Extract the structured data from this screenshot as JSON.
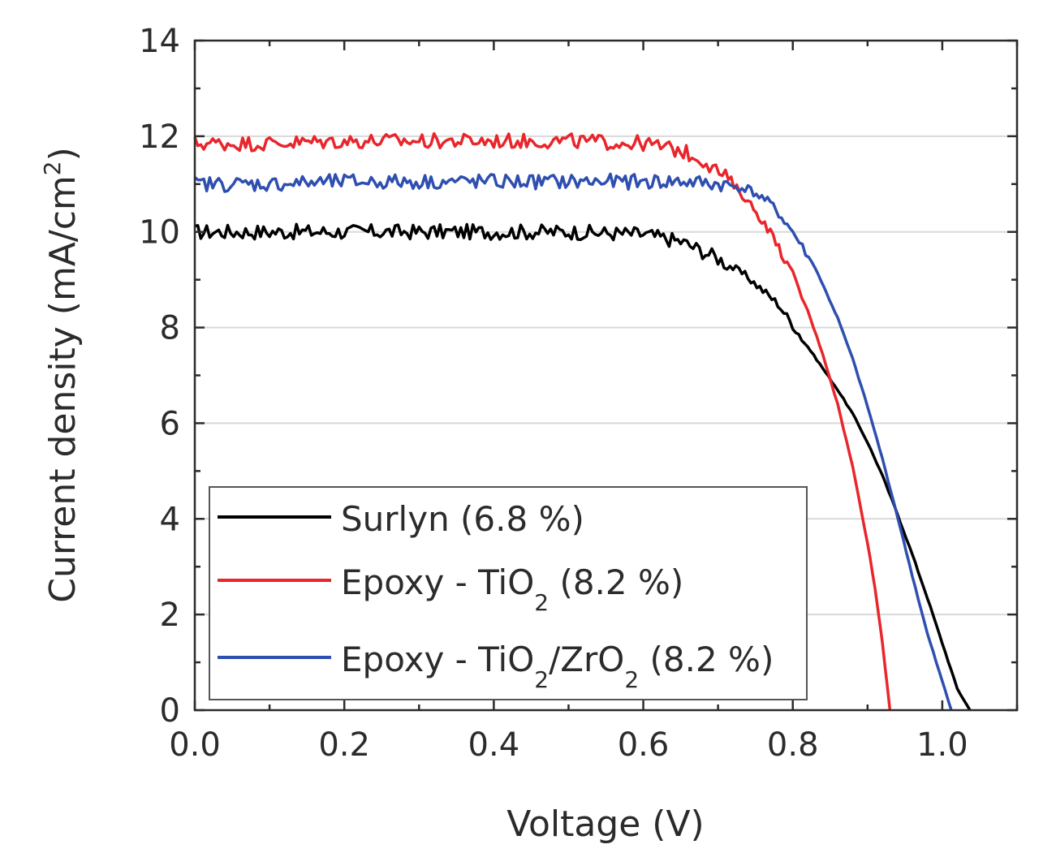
{
  "chart_data": {
    "type": "line",
    "title": "",
    "xlabel": "Voltage (V)",
    "ylabel": "Current density (mA/cm",
    "ylabel_sup": "2",
    "ylabel_close": ")",
    "xlim": [
      0.0,
      1.1
    ],
    "ylim": [
      0,
      14
    ],
    "xticks": [
      0.0,
      0.2,
      0.4,
      0.6,
      0.8,
      1.0
    ],
    "xtick_labels": [
      "0.0",
      "0.2",
      "0.4",
      "0.6",
      "0.8",
      "1.0"
    ],
    "yticks": [
      0,
      2,
      4,
      6,
      8,
      10,
      12,
      14
    ],
    "ytick_labels": [
      "0",
      "2",
      "4",
      "6",
      "8",
      "10",
      "12",
      "14"
    ],
    "grid": "horizontal",
    "legend_position": "bottom-left",
    "series": [
      {
        "name": "Surlyn (6.8 %)",
        "label_parts": {
          "main": "Surlyn (6.8 %)"
        },
        "color": "#000000",
        "points": [
          [
            0.0,
            10.0
          ],
          [
            0.1,
            10.0
          ],
          [
            0.2,
            10.0
          ],
          [
            0.3,
            10.0
          ],
          [
            0.4,
            10.0
          ],
          [
            0.5,
            10.0
          ],
          [
            0.6,
            9.95
          ],
          [
            0.65,
            9.8
          ],
          [
            0.7,
            9.45
          ],
          [
            0.74,
            9.05
          ],
          [
            0.78,
            8.5
          ],
          [
            0.8,
            8.05
          ],
          [
            0.82,
            7.6
          ],
          [
            0.84,
            7.15
          ],
          [
            0.86,
            6.7
          ],
          [
            0.88,
            6.2
          ],
          [
            0.9,
            5.6
          ],
          [
            0.92,
            4.9
          ],
          [
            0.94,
            4.1
          ],
          [
            0.96,
            3.25
          ],
          [
            0.98,
            2.35
          ],
          [
            1.0,
            1.4
          ],
          [
            1.02,
            0.45
          ],
          [
            1.037,
            0.0
          ]
        ]
      },
      {
        "name": "Epoxy - TiO2 (8.2 %)",
        "label_parts": {
          "a": "Epoxy - TiO",
          "sub1": "2",
          "b": " (8.2 %)"
        },
        "color": "#e8262b",
        "points": [
          [
            0.0,
            11.85
          ],
          [
            0.1,
            11.85
          ],
          [
            0.2,
            11.9
          ],
          [
            0.3,
            11.9
          ],
          [
            0.4,
            11.9
          ],
          [
            0.5,
            11.9
          ],
          [
            0.6,
            11.85
          ],
          [
            0.65,
            11.7
          ],
          [
            0.68,
            11.5
          ],
          [
            0.71,
            11.15
          ],
          [
            0.74,
            10.65
          ],
          [
            0.77,
            10.0
          ],
          [
            0.8,
            9.1
          ],
          [
            0.82,
            8.35
          ],
          [
            0.84,
            7.45
          ],
          [
            0.86,
            6.4
          ],
          [
            0.88,
            5.1
          ],
          [
            0.9,
            3.5
          ],
          [
            0.91,
            2.55
          ],
          [
            0.92,
            1.4
          ],
          [
            0.93,
            0.0
          ]
        ]
      },
      {
        "name": "Epoxy - TiO2/ZrO2 (8.2 %)",
        "label_parts": {
          "a": "Epoxy - TiO",
          "sub1": "2",
          "b": "/ZrO",
          "sub2": "2",
          "c": " (8.2 %)"
        },
        "color": "#2f4fb0",
        "points": [
          [
            0.0,
            11.0
          ],
          [
            0.1,
            11.0
          ],
          [
            0.2,
            11.05
          ],
          [
            0.3,
            11.05
          ],
          [
            0.4,
            11.05
          ],
          [
            0.5,
            11.05
          ],
          [
            0.6,
            11.05
          ],
          [
            0.65,
            11.05
          ],
          [
            0.7,
            11.0
          ],
          [
            0.74,
            10.9
          ],
          [
            0.77,
            10.6
          ],
          [
            0.8,
            10.0
          ],
          [
            0.83,
            9.25
          ],
          [
            0.86,
            8.2
          ],
          [
            0.88,
            7.35
          ],
          [
            0.9,
            6.35
          ],
          [
            0.92,
            5.25
          ],
          [
            0.94,
            4.05
          ],
          [
            0.96,
            2.8
          ],
          [
            0.98,
            1.6
          ],
          [
            1.0,
            0.6
          ],
          [
            1.012,
            0.0
          ]
        ]
      }
    ]
  }
}
